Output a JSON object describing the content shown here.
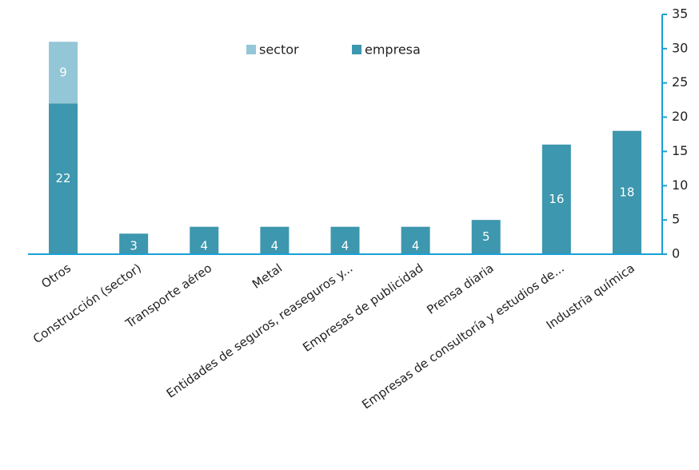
{
  "chart_data": {
    "type": "bar",
    "stacked": true,
    "categories": [
      "Otros",
      "Construcción (sector)",
      "Transporte aéreo",
      "Metal",
      "Entidades de seguros, reaseguros y...",
      "Empresas de publicidad",
      "Prensa diaria",
      "Empresas de consultoría y estudios de...",
      "Industria química"
    ],
    "series": [
      {
        "name": "empresa",
        "color": "#3d97ae",
        "values": [
          22,
          3,
          4,
          4,
          4,
          4,
          5,
          16,
          18
        ]
      },
      {
        "name": "sector",
        "color": "#93c6d6",
        "values": [
          9,
          0,
          0,
          0,
          0,
          0,
          0,
          0,
          0
        ]
      }
    ],
    "legend_order": [
      "sector",
      "empresa"
    ],
    "legend_placement": "top-center",
    "y_axis_position": "right",
    "ylim": [
      0,
      35
    ],
    "yticks": [
      0,
      5,
      10,
      15,
      20,
      25,
      30,
      35
    ],
    "axis_color": "#1aa0d4",
    "grid": false,
    "title": "",
    "xlabel": "",
    "ylabel": ""
  }
}
